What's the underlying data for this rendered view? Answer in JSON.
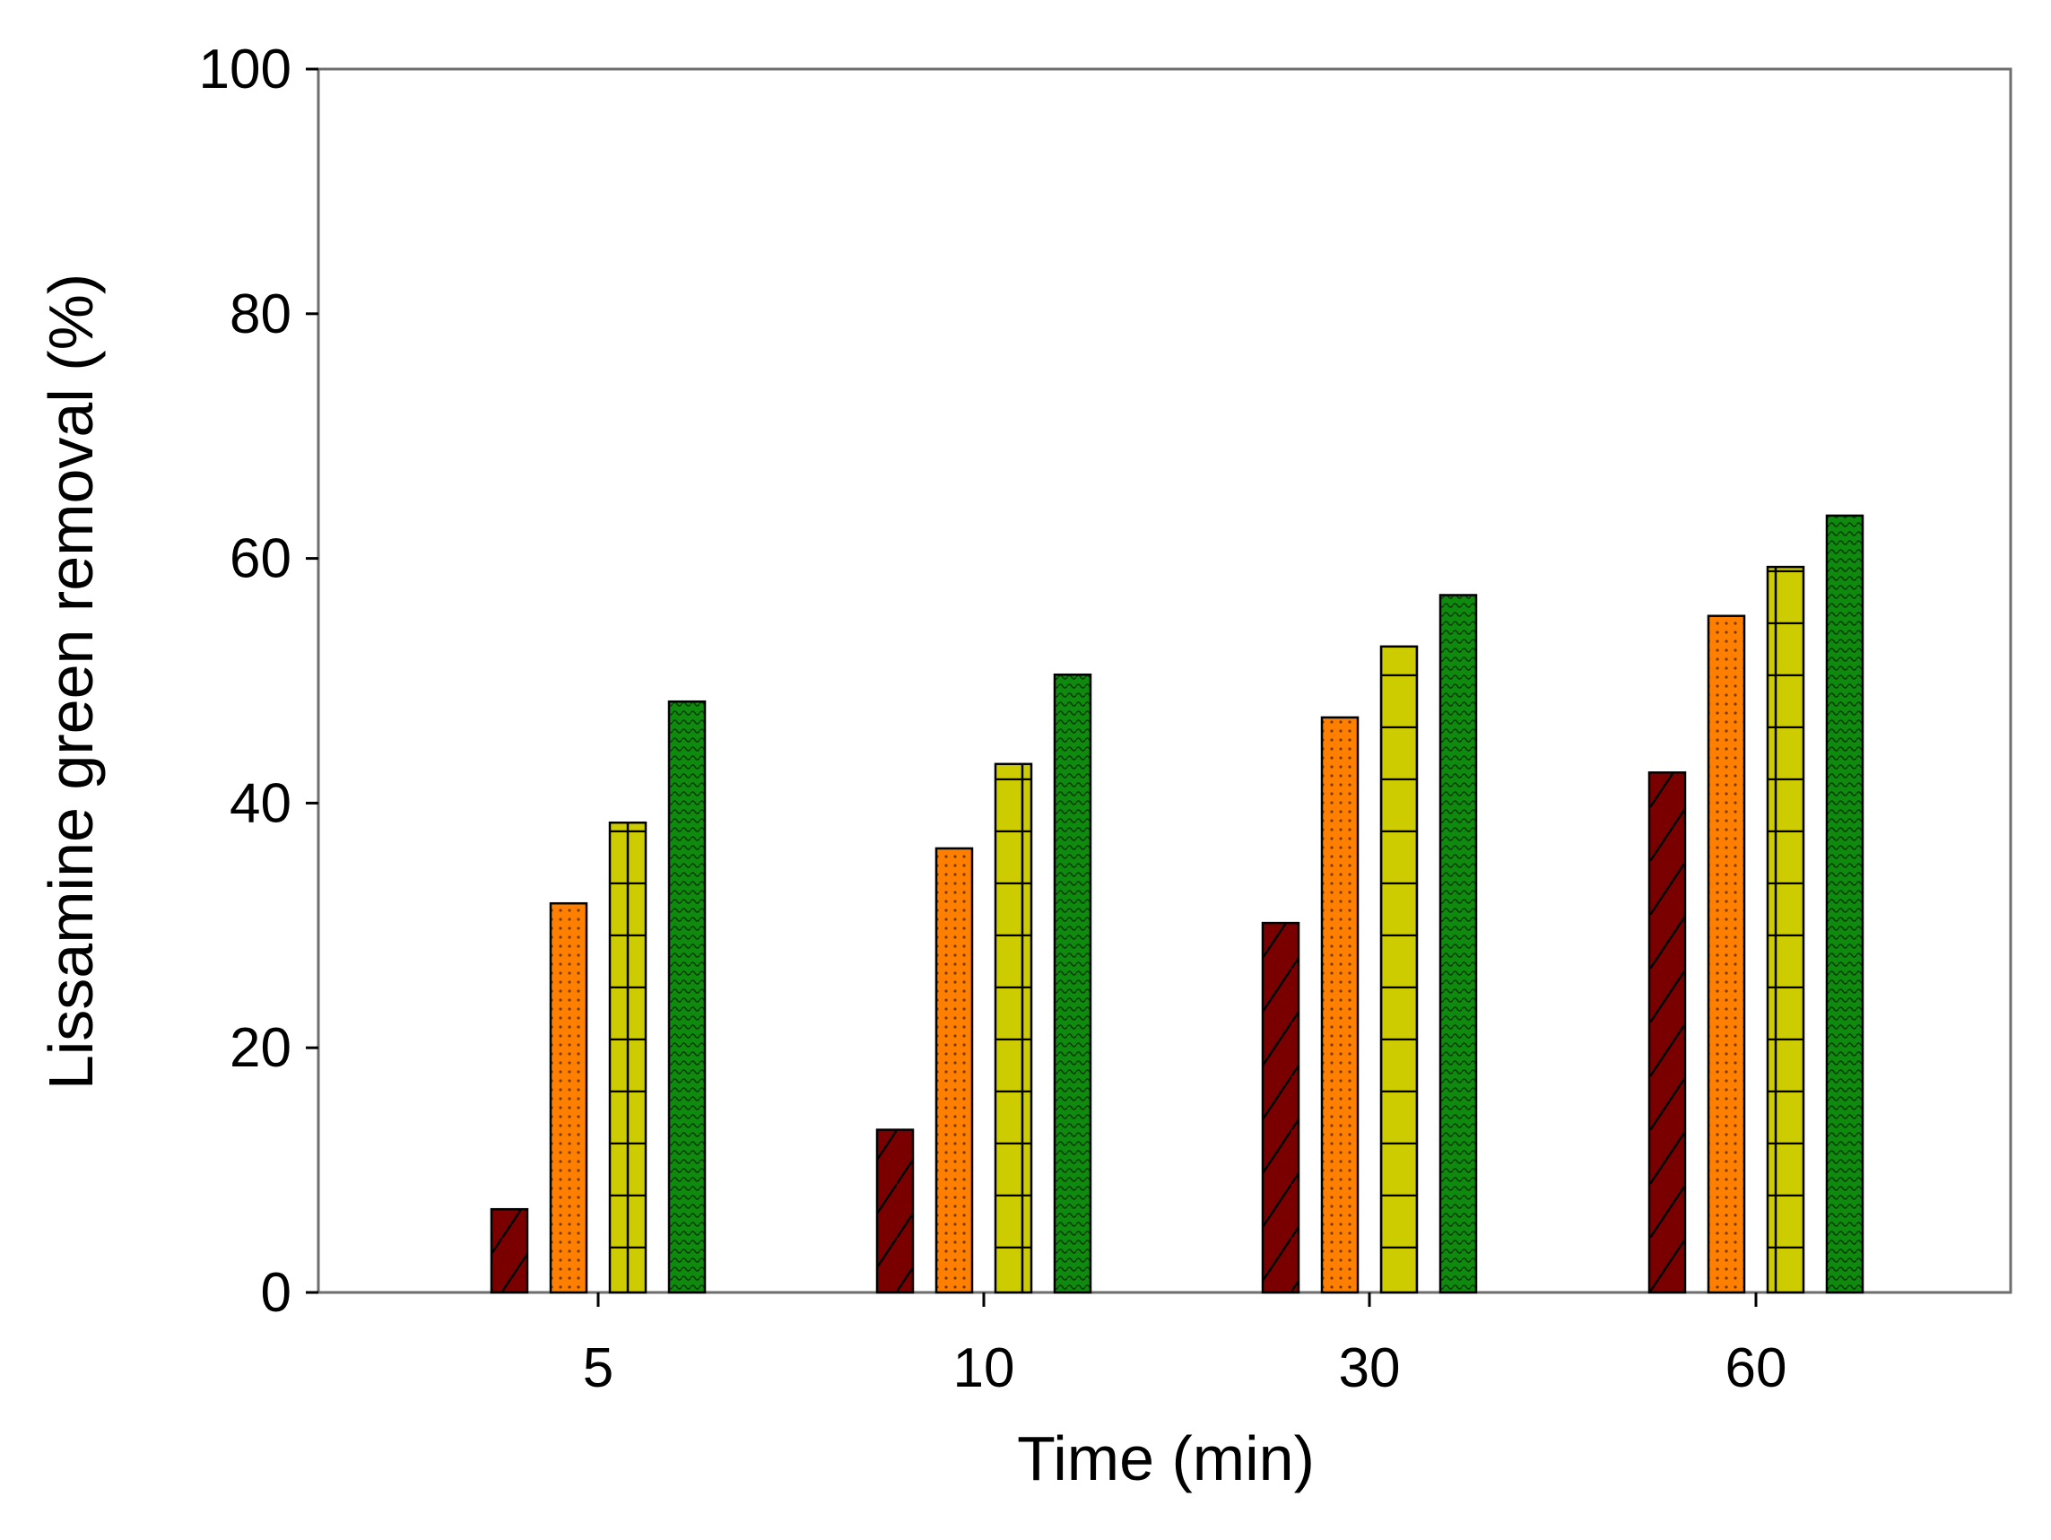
{
  "chart_data": {
    "type": "bar",
    "title": "",
    "xlabel": "Time (min)",
    "ylabel": "Lissamine green removal (%)",
    "categories": [
      "5",
      "10",
      "30",
      "60"
    ],
    "ylim": [
      0,
      100
    ],
    "yticks": [
      0,
      20,
      40,
      60,
      80,
      100
    ],
    "grid": false,
    "legend": "none",
    "series": [
      {
        "name": "series-1",
        "color": "#7a0000",
        "pattern": "diagonal-hatch",
        "values": [
          6.8,
          13.3,
          30.2,
          42.5
        ]
      },
      {
        "name": "series-2",
        "color": "#ff8000",
        "pattern": "dotted",
        "values": [
          31.8,
          36.3,
          47.0,
          55.3
        ]
      },
      {
        "name": "series-3",
        "color": "#cccc00",
        "pattern": "horizontal-grid",
        "values": [
          38.4,
          43.2,
          52.8,
          59.3
        ]
      },
      {
        "name": "series-4",
        "color": "#0f8a0f",
        "pattern": "wavy",
        "values": [
          48.3,
          50.5,
          57.0,
          63.5
        ]
      }
    ]
  }
}
